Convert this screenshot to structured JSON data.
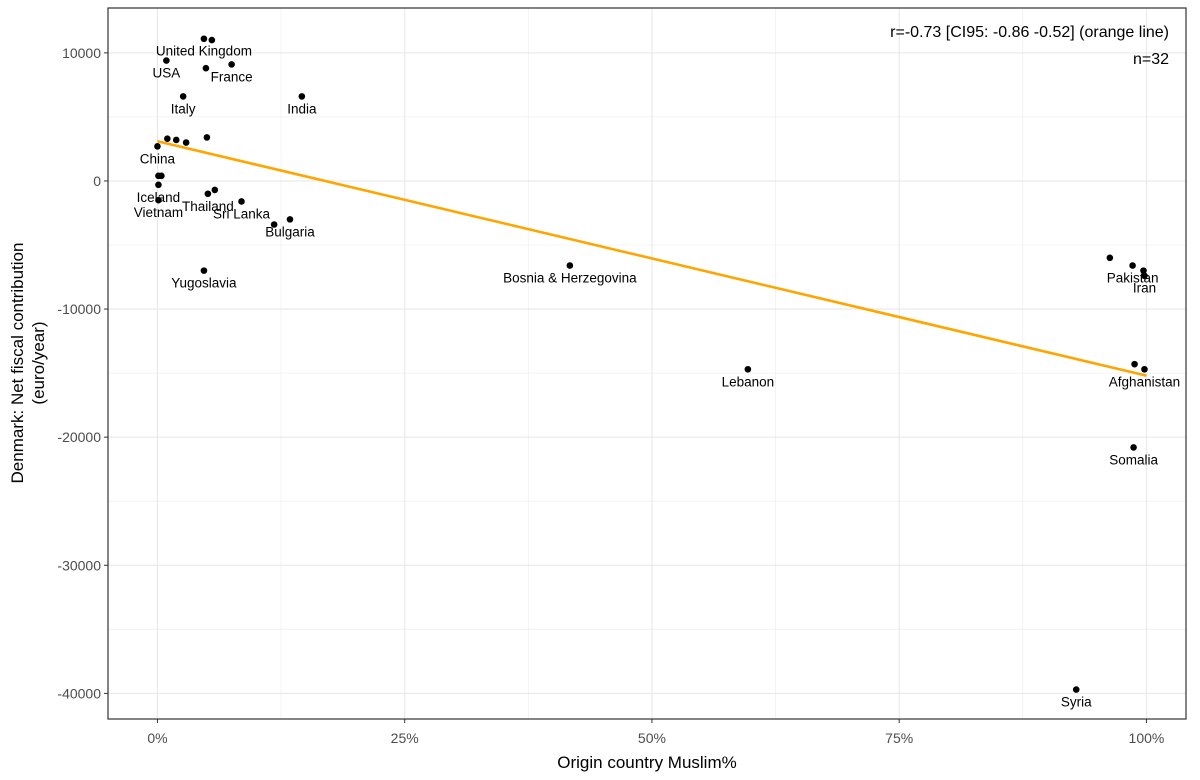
{
  "chart_data": {
    "type": "scatter",
    "xlabel": "Origin country Muslim%",
    "ylabel": [
      "Denmark: Net fiscal contribution",
      "(euro/year)"
    ],
    "xlim": [
      -0.05,
      1.04
    ],
    "ylim": [
      -42000,
      13500
    ],
    "x_ticks": [
      0,
      0.25,
      0.5,
      0.75,
      1.0
    ],
    "x_tick_labels": [
      "0%",
      "25%",
      "50%",
      "75%",
      "100%"
    ],
    "y_ticks": [
      10000,
      0,
      -10000,
      -20000,
      -30000,
      -40000
    ],
    "y_tick_labels": [
      "10000",
      "0",
      "-10000",
      "-20000",
      "-30000",
      "-40000"
    ],
    "grid": true,
    "annotations": [
      "r=-0.73 [CI95: -0.86 -0.52] (orange line)",
      "n=32"
    ],
    "trend_color": "#FFA500",
    "point_color": "#000000",
    "trend_line": {
      "x": [
        0.0,
        1.0
      ],
      "y": [
        3100,
        -15200
      ]
    },
    "points": [
      {
        "label": "United Kingdom",
        "x": 0.047,
        "y": 11100
      },
      {
        "label": "",
        "x": 0.055,
        "y": 11000
      },
      {
        "label": "USA",
        "x": 0.009,
        "y": 9400
      },
      {
        "label": "France",
        "x": 0.075,
        "y": 9100
      },
      {
        "label": "",
        "x": 0.049,
        "y": 8800
      },
      {
        "label": "Italy",
        "x": 0.026,
        "y": 6600
      },
      {
        "label": "India",
        "x": 0.146,
        "y": 6600
      },
      {
        "label": "",
        "x": 0.01,
        "y": 3300
      },
      {
        "label": "",
        "x": 0.019,
        "y": 3200
      },
      {
        "label": "",
        "x": 0.029,
        "y": 3000
      },
      {
        "label": "",
        "x": 0.05,
        "y": 3400
      },
      {
        "label": "China",
        "x": 0.0,
        "y": 2700
      },
      {
        "label": "",
        "x": 0.001,
        "y": 400
      },
      {
        "label": "",
        "x": 0.004,
        "y": 400
      },
      {
        "label": "Iceland",
        "x": 0.001,
        "y": -300
      },
      {
        "label": "Vietnam",
        "x": 0.001,
        "y": -1500
      },
      {
        "label": "Thailand",
        "x": 0.051,
        "y": -1000
      },
      {
        "label": "",
        "x": 0.058,
        "y": -700
      },
      {
        "label": "Sri Lanka",
        "x": 0.085,
        "y": -1600
      },
      {
        "label": "",
        "x": 0.118,
        "y": -3400
      },
      {
        "label": "Bulgaria",
        "x": 0.134,
        "y": -3000
      },
      {
        "label": "Yugoslavia",
        "x": 0.047,
        "y": -7000
      },
      {
        "label": "Bosnia & Herzegovina",
        "x": 0.417,
        "y": -6600
      },
      {
        "label": "Lebanon",
        "x": 0.597,
        "y": -14700
      },
      {
        "label": "",
        "x": 0.963,
        "y": -6000
      },
      {
        "label": "Pakistan",
        "x": 0.986,
        "y": -6600
      },
      {
        "label": "",
        "x": 0.997,
        "y": -7000
      },
      {
        "label": "Iran",
        "x": 0.998,
        "y": -7400
      },
      {
        "label": "",
        "x": 0.988,
        "y": -14300
      },
      {
        "label": "Afghanistan",
        "x": 0.998,
        "y": -14700
      },
      {
        "label": "Somalia",
        "x": 0.987,
        "y": -20800
      },
      {
        "label": "Syria",
        "x": 0.929,
        "y": -39700
      }
    ]
  }
}
